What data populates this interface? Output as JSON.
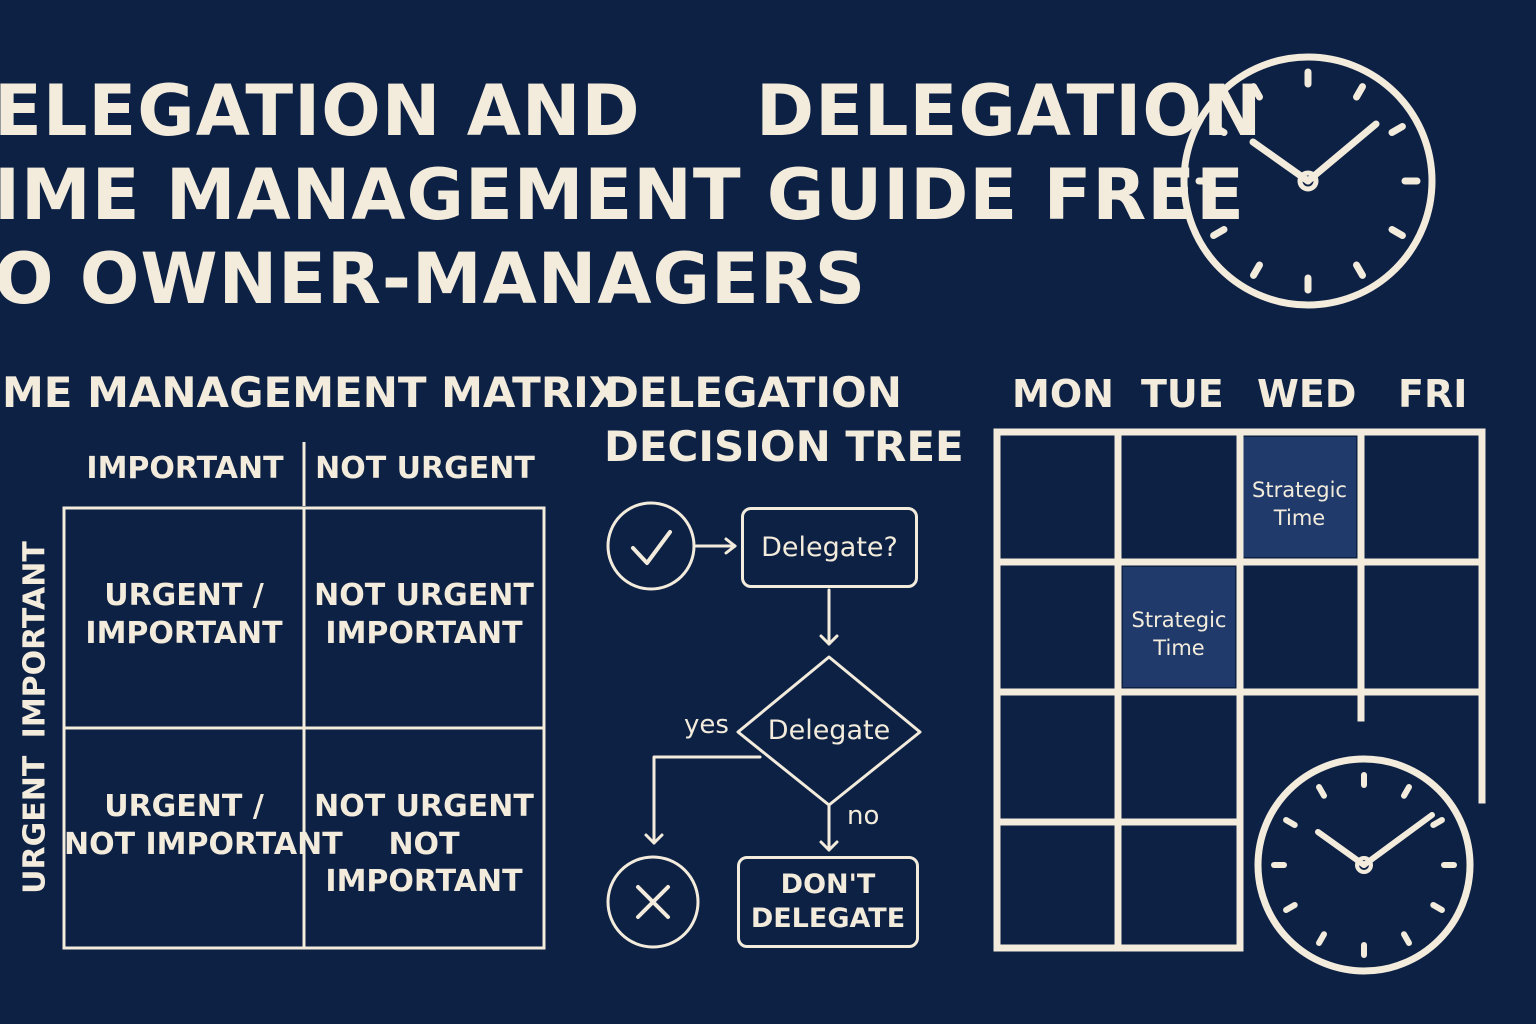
{
  "title": {
    "line1a": "ELEGATION AND",
    "line1b": "DELEGATION",
    "line2": "IME MANAGEMENT GUIDE FREE",
    "line3": "O OWNER-MANAGERS"
  },
  "matrix": {
    "heading": "ME MANAGEMENT MATRIX",
    "col_headers": [
      "IMPORTANT",
      "NOT URGENT"
    ],
    "row_axis_top": "IMPORTANT",
    "row_axis_bottom": "URGENT",
    "cells": [
      [
        "URGENT /",
        "IMPORTANT"
      ],
      [
        "NOT URGENT",
        "IMPORTANT"
      ],
      [
        "URGENT /",
        "NOT IMPORTANT"
      ],
      [
        "NOT URGENT",
        "NOT",
        "IMPORTANT"
      ]
    ]
  },
  "tree": {
    "heading_line1": "DELEGATION",
    "heading_line2": "DECISION TREE",
    "start_box": "Delegate?",
    "diamond": "Delegate",
    "yes": "yes",
    "no": "no",
    "end_box_line1": "DON'T",
    "end_box_line2": "DELEGATE",
    "check_icon": "check-circle-icon",
    "x_icon": "x-circle-icon"
  },
  "calendar": {
    "days": [
      "MON",
      "TUE",
      "WED",
      "FRI"
    ],
    "blocks": [
      {
        "line1": "Strategic",
        "line2": "Time"
      },
      {
        "line1": "Strategic",
        "line2": "Time"
      }
    ],
    "icon": "clock-icon"
  },
  "colors": {
    "background": "#0d2145",
    "ink": "#f3ecdc",
    "highlight": "#1f3a6b"
  }
}
